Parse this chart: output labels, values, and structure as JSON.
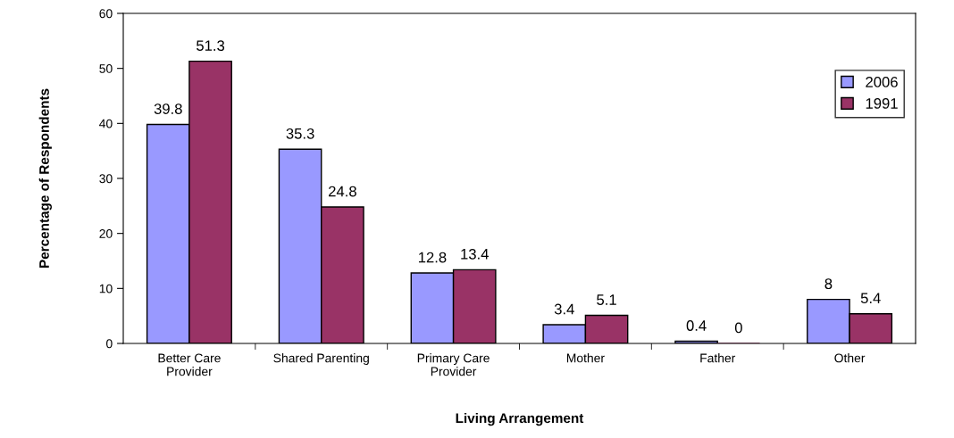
{
  "chart_data": {
    "type": "bar",
    "xlabel": "Living Arrangement",
    "ylabel": "Percentage of Respondents",
    "categories": [
      "Better Care\nProvider",
      "Shared Parenting",
      "Primary Care\nProvider",
      "Mother",
      "Father",
      "Other"
    ],
    "series": [
      {
        "name": "2006",
        "color": "#9999ff",
        "values": [
          39.8,
          35.3,
          12.8,
          3.4,
          0.4,
          8
        ]
      },
      {
        "name": "1991",
        "color": "#993366",
        "values": [
          51.3,
          24.8,
          13.4,
          5.1,
          0,
          5.4
        ]
      }
    ],
    "ylim": [
      0,
      60
    ],
    "yticks": [
      0,
      10,
      20,
      30,
      40,
      50,
      60
    ],
    "grid": false,
    "legend": "top right",
    "data_labels": true
  }
}
